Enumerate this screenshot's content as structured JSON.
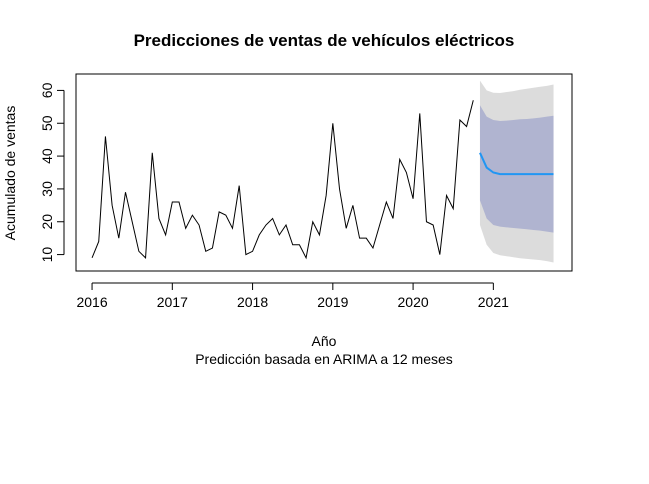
{
  "chart_data": {
    "type": "line",
    "title": "Predicciones de ventas de vehículos eléctricos",
    "xlabel": "Año",
    "ylabel": "Acumulado de ventas",
    "subtitle": "Predicción basada en ARIMA a 12 meses",
    "xlim": [
      2015.8,
      2021.98
    ],
    "ylim": [
      5,
      65
    ],
    "x_ticks": [
      2016,
      2017,
      2018,
      2019,
      2020,
      2021
    ],
    "y_ticks": [
      10,
      20,
      30,
      40,
      50,
      60
    ],
    "x_tick_labels": [
      "2016",
      "2017",
      "2018",
      "2019",
      "2020",
      "2021"
    ],
    "y_tick_labels": [
      "10",
      "20",
      "30",
      "40",
      "50",
      "60"
    ],
    "grid": false,
    "series": [
      {
        "role": "observed",
        "color": "#000000",
        "start": 2016.0,
        "step": 0.0833333,
        "values": [
          9,
          14,
          46,
          25,
          15,
          29,
          20,
          11,
          9,
          41,
          21,
          16,
          26,
          26,
          18,
          22,
          19,
          11,
          12,
          23,
          22,
          18,
          31,
          10,
          11,
          16,
          19,
          21,
          16,
          19,
          13,
          13,
          9,
          20,
          16,
          28,
          50,
          30,
          18,
          25,
          15,
          15,
          12,
          19,
          26,
          21,
          39,
          35,
          27,
          53,
          20,
          19,
          10,
          28,
          24,
          51,
          49,
          57
        ]
      },
      {
        "role": "forecast",
        "color": "#2196f3",
        "start": 2020.8333,
        "step": 0.0833333,
        "values": [
          41,
          36.5,
          35,
          34.5,
          34.5,
          34.5,
          34.5,
          34.5,
          34.5,
          34.5,
          34.5,
          34.5
        ],
        "band_80": {
          "color": "#b0b4d0",
          "lower": [
            26.5,
            21,
            19,
            18.5,
            18.3,
            18.1,
            17.9,
            17.7,
            17.5,
            17.3,
            17.0,
            16.7
          ],
          "upper": [
            55.5,
            52,
            51,
            50.7,
            50.8,
            51,
            51.2,
            51.3,
            51.5,
            51.7,
            52,
            52.3
          ]
        },
        "band_95": {
          "color": "#dcdcdc",
          "lower": [
            19,
            13,
            10.5,
            9.8,
            9.5,
            9.2,
            8.9,
            8.7,
            8.5,
            8.3,
            8.0,
            7.6
          ],
          "upper": [
            63,
            60,
            59.3,
            59.2,
            59.5,
            59.8,
            60.2,
            60.5,
            60.8,
            61.1,
            61.4,
            61.8
          ]
        }
      }
    ]
  }
}
